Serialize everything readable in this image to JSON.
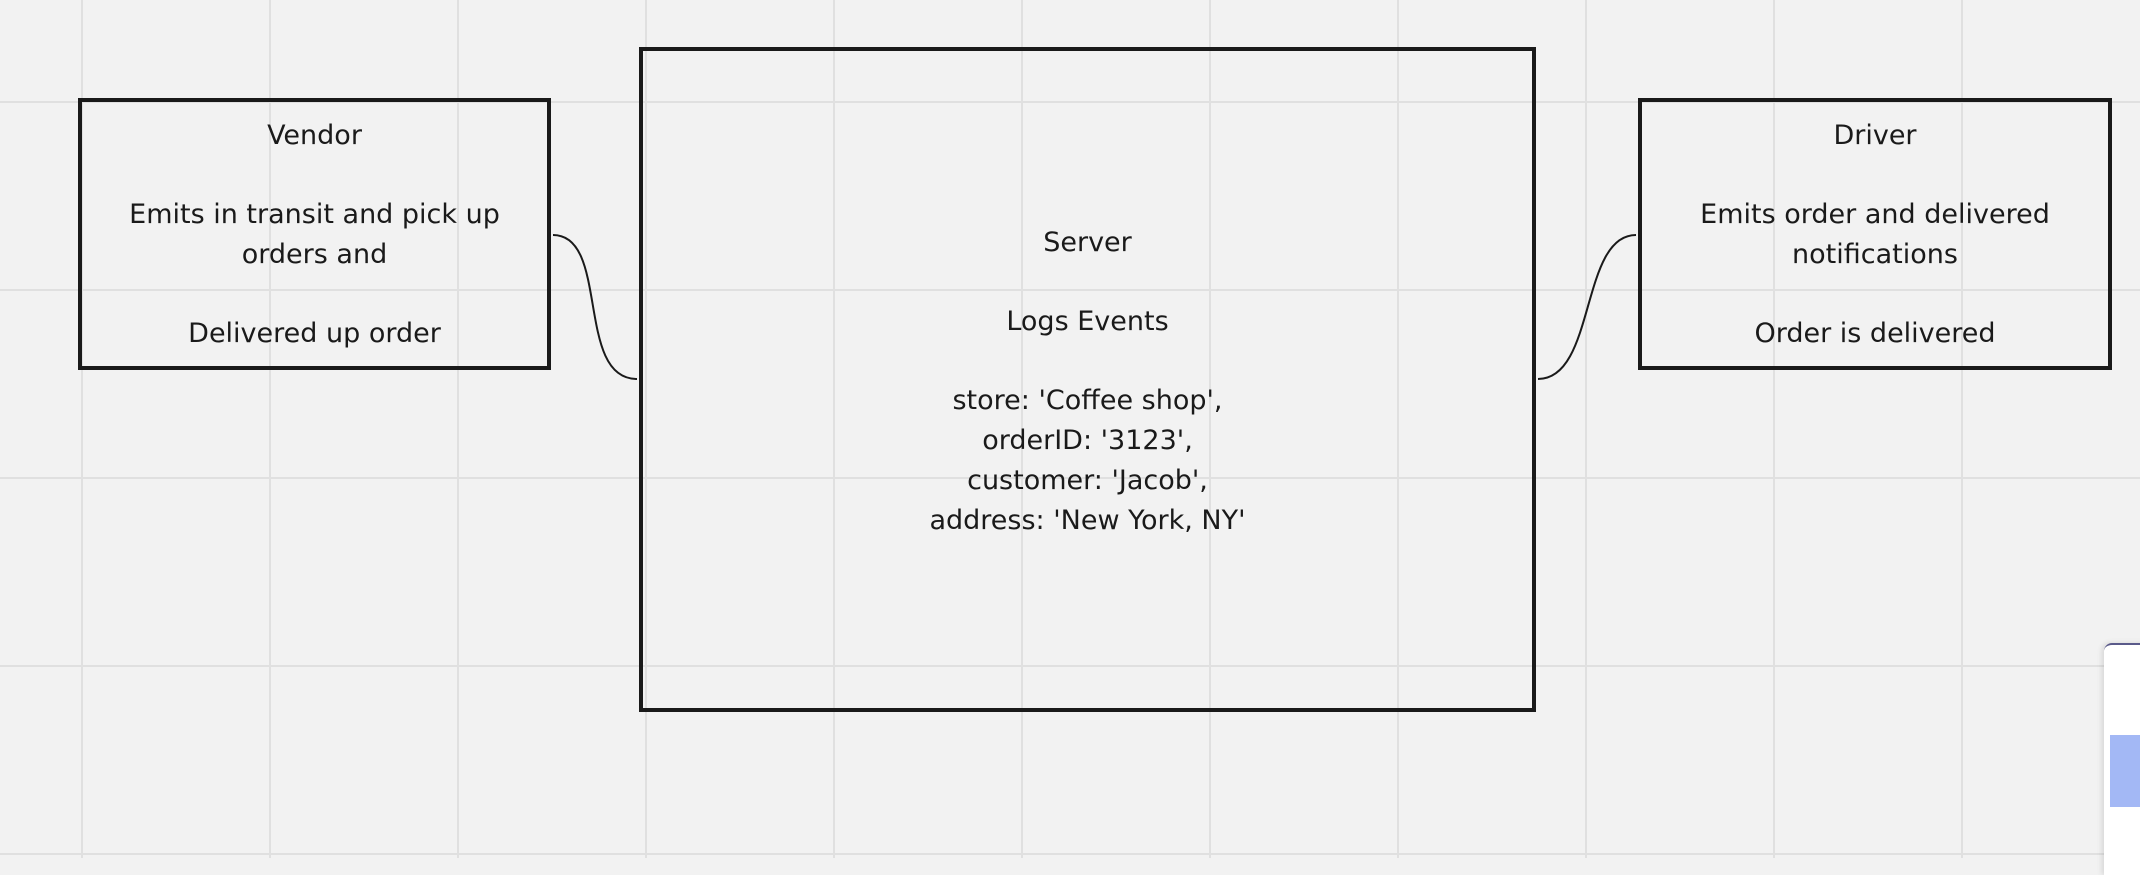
{
  "canvas": {
    "background": "#f2f2f2",
    "grid_color": "#e0e0e0"
  },
  "diagram": {
    "nodes": {
      "vendor": {
        "title": "Vendor",
        "lines": [
          "Emits in transit and pick up",
          "orders and",
          "Delivered up order"
        ]
      },
      "server": {
        "title": "Server",
        "subtitle": "Logs Events",
        "payload": [
          "store: 'Coffee shop',",
          "orderID: '3123',",
          "customer: 'Jacob',",
          "address: 'New York, NY'"
        ]
      },
      "driver": {
        "title": "Driver",
        "lines": [
          "Emits order and delivered",
          "notifications",
          "Order is delivered"
        ]
      }
    },
    "edges": [
      {
        "from": "vendor",
        "to": "server"
      },
      {
        "from": "driver",
        "to": "server"
      }
    ]
  },
  "side_panel": {
    "highlight_color": "#a3b8f5"
  }
}
